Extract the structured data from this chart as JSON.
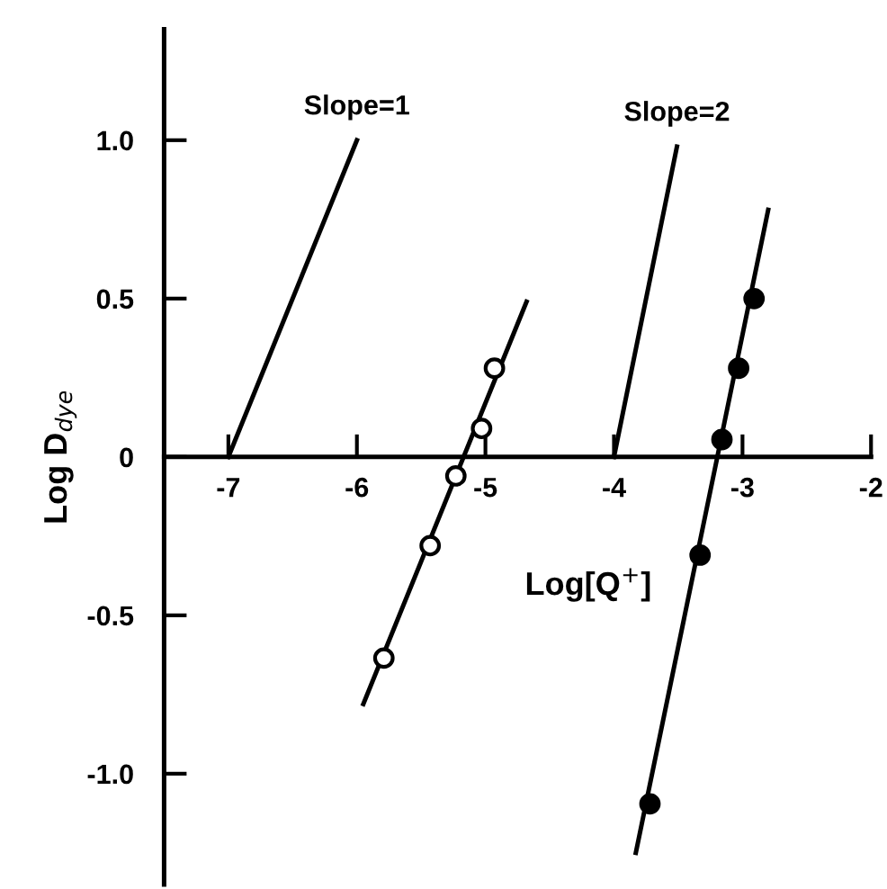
{
  "chart_data": {
    "type": "scatter",
    "xlabel": "Log[Q$^{+}$]",
    "ylabel": "Log D$_{dye}$",
    "xlim": [
      -7.5,
      -2
    ],
    "ylim": [
      -1.35,
      1.35
    ],
    "xticks": [
      -7,
      -6,
      -5,
      -4,
      -3,
      -2
    ],
    "yticks": [
      {
        "value": 1.0,
        "label": "1.0"
      },
      {
        "value": 0.5,
        "label": "0.5"
      },
      0,
      {
        "value": -0.5,
        "label": "-0.5"
      },
      {
        "value": -1.0,
        "label": "-1.0"
      }
    ],
    "grid": false,
    "legend": false,
    "series": [
      {
        "type": "line",
        "marker": "none",
        "color": "#000000",
        "x": [
          -7.0,
          -6.0
        ],
        "values": [
          0.0,
          1.0
        ]
      },
      {
        "type": "line",
        "marker": "none",
        "color": "#000000",
        "x": [
          -4.0,
          -3.51
        ],
        "values": [
          0.0,
          0.98
        ]
      },
      {
        "type": "line",
        "marker": "none",
        "color": "#000000",
        "x": [
          -5.95,
          -4.68
        ],
        "values": [
          -0.78,
          0.49
        ]
      },
      {
        "type": "line",
        "marker": "none",
        "color": "#000000",
        "x": [
          -3.83,
          -2.8
        ],
        "values": [
          -1.25,
          0.78
        ]
      },
      {
        "marker": "circle",
        "color": "#ffffff",
        "x": [
          -5.79,
          -5.43,
          -5.23,
          -5.03,
          -4.93
        ],
        "values": [
          -0.635,
          -0.28,
          -0.06,
          0.09,
          0.28
        ]
      },
      {
        "marker": "circle",
        "color": "#000000",
        "x": [
          -3.72,
          -3.33,
          -3.16,
          -3.03,
          -2.91
        ],
        "values": [
          -1.095,
          -0.31,
          0.055,
          0.28,
          0.5
        ]
      }
    ],
    "annotations": [
      {
        "text": "Slope=1",
        "x": -6.0,
        "y": 1.0
      },
      {
        "text": "Slope=2",
        "x": -3.51,
        "y": 0.98
      }
    ]
  }
}
